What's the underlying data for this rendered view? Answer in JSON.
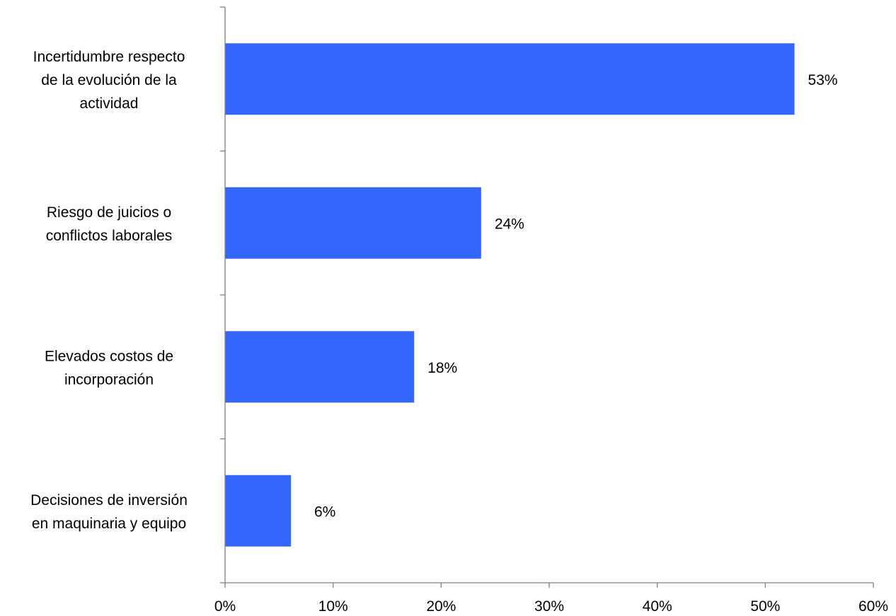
{
  "chart_data": {
    "type": "bar",
    "orientation": "horizontal",
    "categories": [
      [
        "Incertidumbre respecto",
        "de la evolución de la",
        "actividad"
      ],
      [
        "Riesgo de juicios o",
        "conflictos laborales"
      ],
      [
        "Elevados costos de",
        "incorporación"
      ],
      [
        "Decisiones de inversión",
        "en maquinaria  y equipo"
      ]
    ],
    "values": [
      52.7,
      23.7,
      17.5,
      6.1
    ],
    "data_labels": [
      "53%",
      "24%",
      "18%",
      "6%"
    ],
    "xlim": [
      0,
      60
    ],
    "x_ticks": [
      0,
      10,
      20,
      30,
      40,
      50,
      60
    ],
    "x_tick_labels": [
      "0%",
      "10%",
      "20%",
      "30%",
      "40%",
      "50%",
      "60%"
    ],
    "title": "",
    "xlabel": "",
    "ylabel": "",
    "grid": false,
    "legend": "none",
    "bar_color": "#3366FF",
    "axis_color": "#808080"
  }
}
